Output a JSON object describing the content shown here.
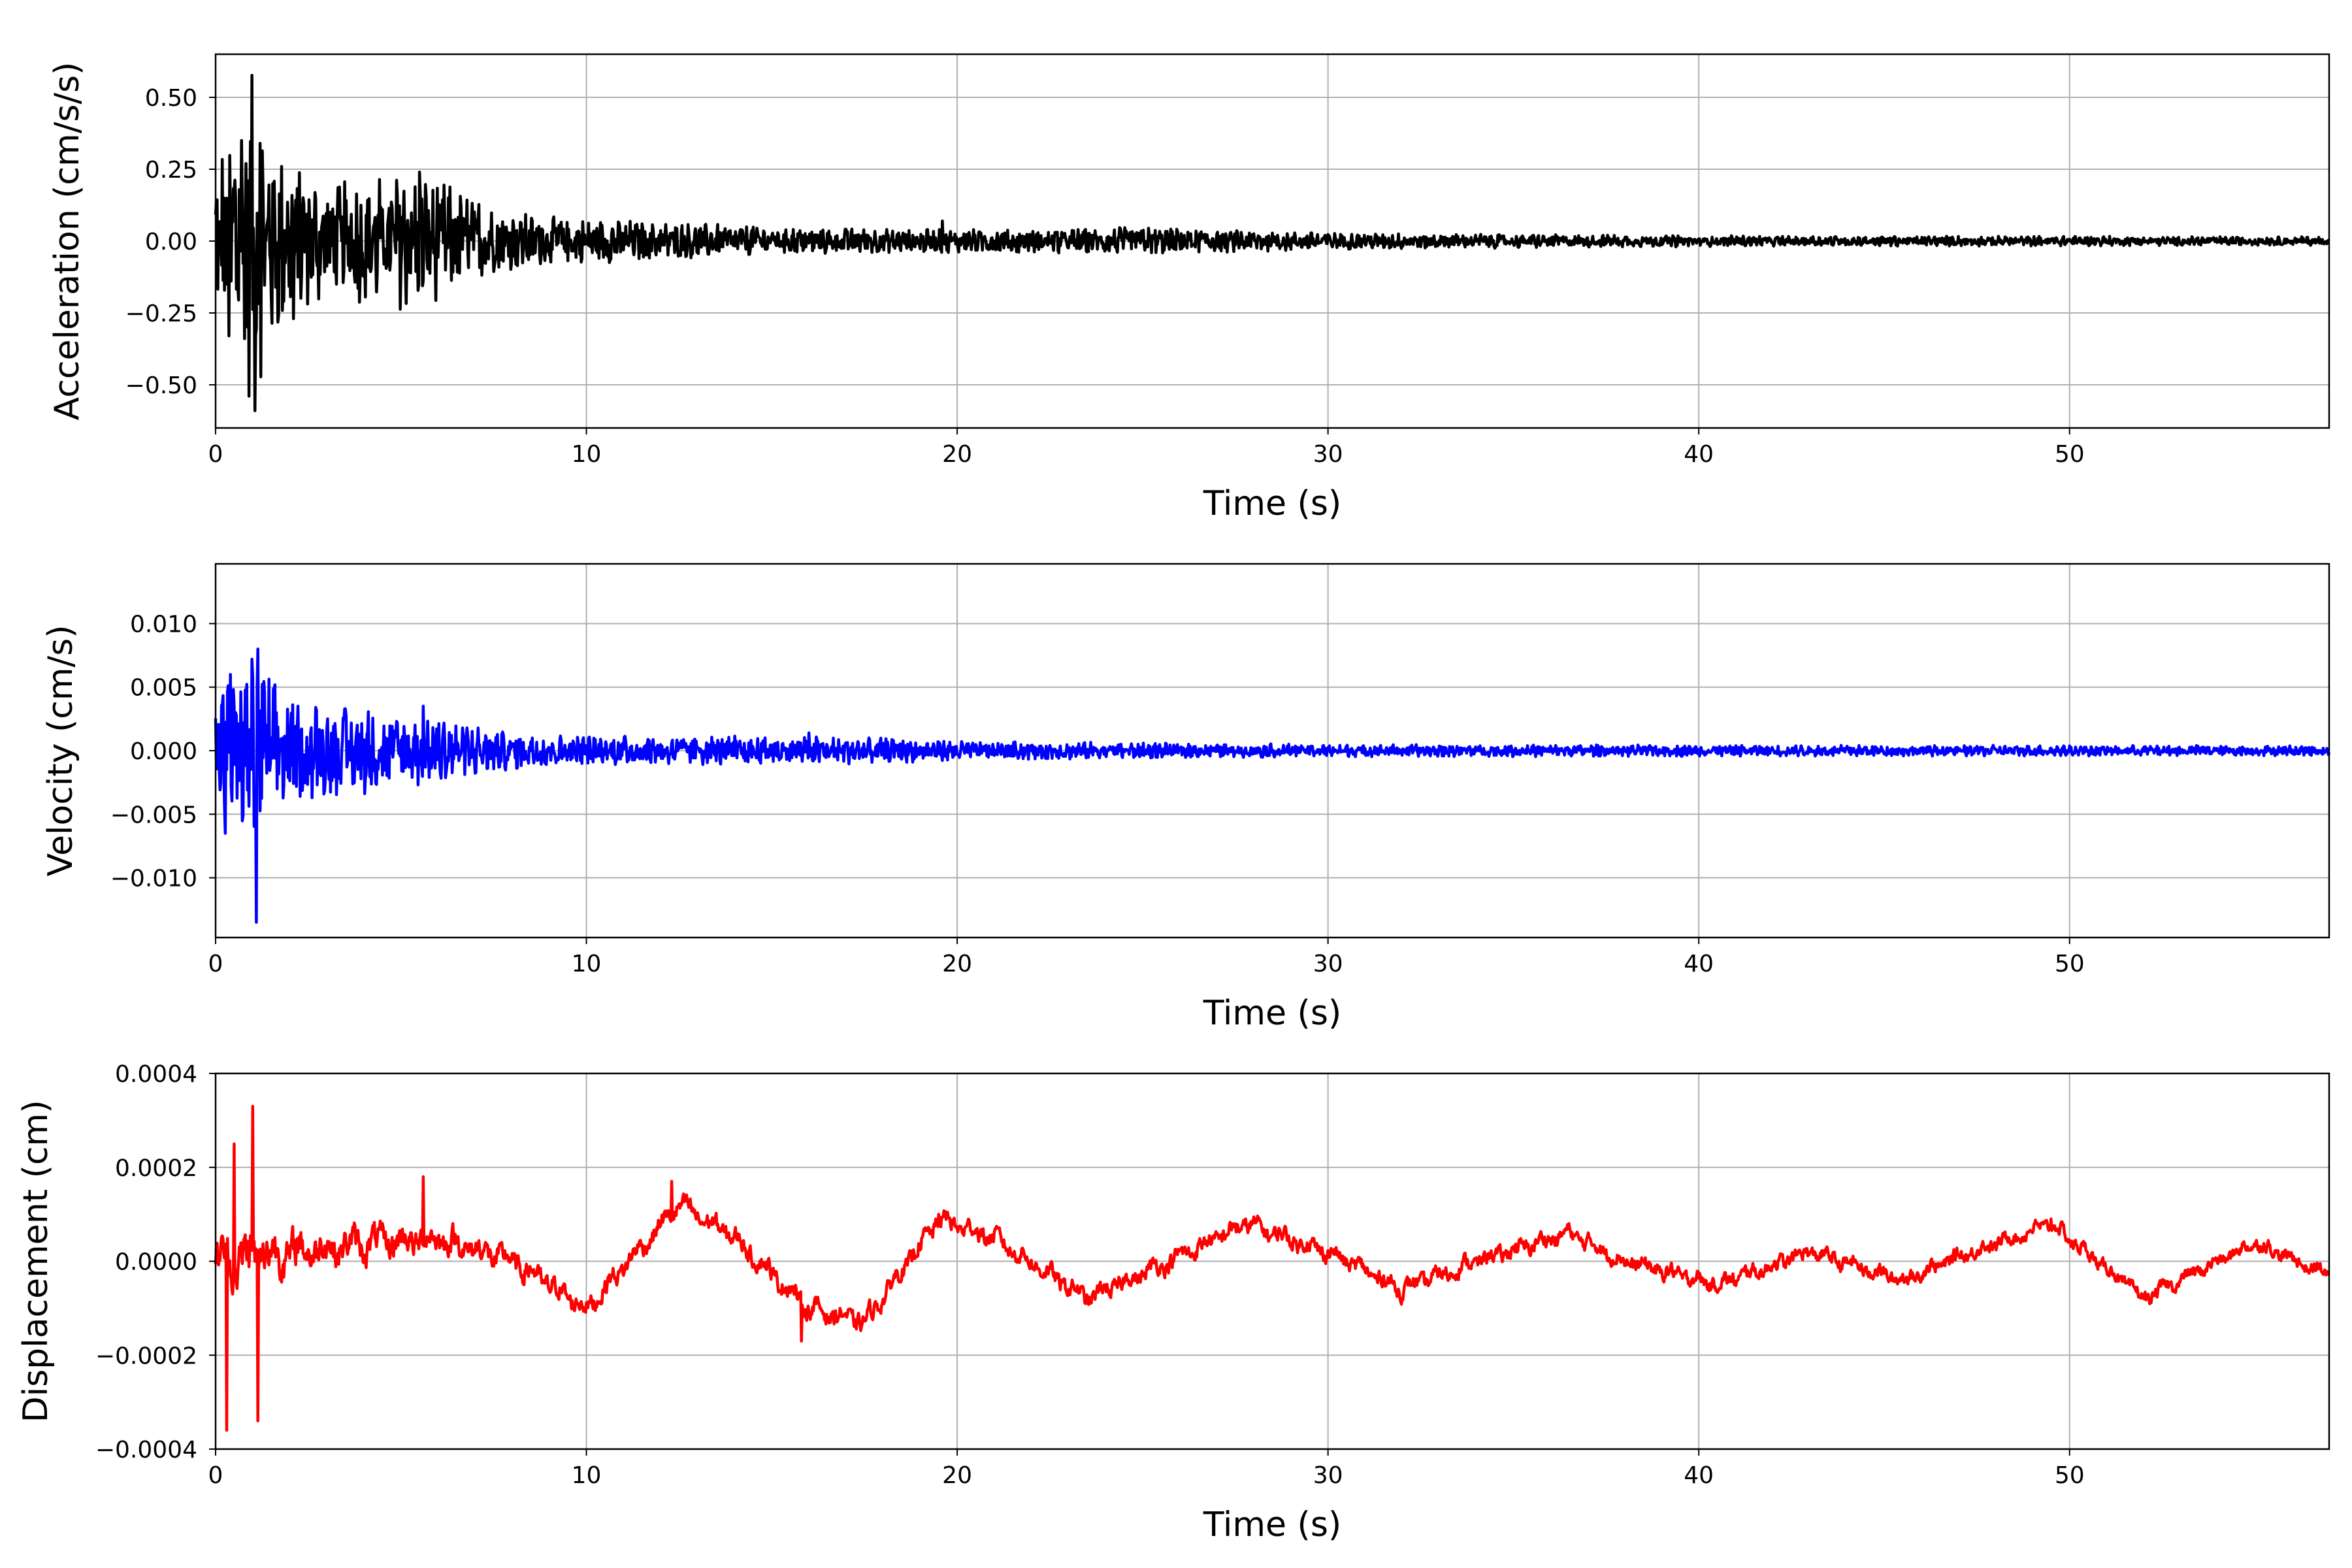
{
  "chart_data": [
    {
      "type": "line",
      "xlabel": "Time (s)",
      "ylabel": "Acceleration (cm/s/s)",
      "xlim": [
        0,
        57
      ],
      "ylim": [
        -0.65,
        0.65
      ],
      "xticks": [
        0,
        10,
        20,
        30,
        40,
        50
      ],
      "yticks": [
        -0.5,
        -0.25,
        0.0,
        0.25,
        0.5
      ],
      "ytick_labels": [
        "−0.50",
        "−0.25",
        "0.00",
        "0.25",
        "0.50"
      ],
      "grid": true,
      "series": [
        {
          "color": "#000000",
          "envelope": [
            [
              0,
              0.3
            ],
            [
              1,
              0.6
            ],
            [
              1.5,
              0.35
            ],
            [
              3,
              0.2
            ],
            [
              5.5,
              0.25
            ],
            [
              8,
              0.1
            ],
            [
              10,
              0.08
            ],
            [
              15,
              0.05
            ],
            [
              20,
              0.04
            ],
            [
              25,
              0.05
            ],
            [
              30,
              0.03
            ],
            [
              40,
              0.02
            ],
            [
              57,
              0.015
            ]
          ],
          "peaks": [
            [
              0.7,
              0.35
            ],
            [
              1.05,
              -0.59
            ],
            [
              1.2,
              0.34
            ],
            [
              0.35,
              -0.33
            ],
            [
              5.5,
              0.24
            ],
            [
              2.1,
              -0.27
            ],
            [
              19.6,
              0.07
            ]
          ]
        }
      ]
    },
    {
      "type": "line",
      "xlabel": "Time (s)",
      "ylabel": "Velocity (cm/s)",
      "xlim": [
        0,
        57
      ],
      "ylim": [
        -0.0147,
        0.0147
      ],
      "xticks": [
        0,
        10,
        20,
        30,
        40,
        50
      ],
      "yticks": [
        -0.01,
        -0.005,
        0.0,
        0.005,
        0.01
      ],
      "ytick_labels": [
        "−0.010",
        "−0.005",
        "0.000",
        "0.005",
        "0.010"
      ],
      "grid": true,
      "series": [
        {
          "color": "#0000ff",
          "envelope": [
            [
              0,
              0.005
            ],
            [
              1,
              0.008
            ],
            [
              2,
              0.004
            ],
            [
              5.5,
              0.003
            ],
            [
              8,
              0.0015
            ],
            [
              10,
              0.0012
            ],
            [
              16,
              0.0012
            ],
            [
              20,
              0.0008
            ],
            [
              30,
              0.0005
            ],
            [
              57,
              0.0004
            ]
          ],
          "peaks": [
            [
              0.4,
              0.006
            ],
            [
              1.15,
              0.008
            ],
            [
              1.1,
              -0.0135
            ],
            [
              0.25,
              -0.0065
            ],
            [
              2.6,
              -0.0037
            ],
            [
              5.6,
              0.0035
            ],
            [
              16,
              0.0014
            ]
          ]
        }
      ]
    },
    {
      "type": "line",
      "xlabel": "Time (s)",
      "ylabel": "Displacement (cm)",
      "xlim": [
        0,
        57
      ],
      "ylim": [
        -0.0004,
        0.0004
      ],
      "xticks": [
        0,
        10,
        20,
        30,
        40,
        50
      ],
      "yticks": [
        -0.0004,
        -0.0002,
        0.0,
        0.0002,
        0.0004
      ],
      "ytick_labels": [
        "−0.0004",
        "−0.0002",
        "0.0000",
        "0.0002",
        "0.0004"
      ],
      "grid": true,
      "series": [
        {
          "color": "#ff0000",
          "envelope": [
            [
              0,
              6e-05
            ],
            [
              1,
              8e-05
            ],
            [
              3,
              5e-05
            ],
            [
              10,
              3e-05
            ],
            [
              57,
              2e-05
            ]
          ],
          "peaks": [
            [
              0.3,
              -0.00036
            ],
            [
              0.5,
              0.00025
            ],
            [
              1.0,
              0.00033
            ],
            [
              1.15,
              -0.00034
            ],
            [
              5.6,
              0.00018
            ],
            [
              12.3,
              0.00017
            ],
            [
              15.8,
              -0.00017
            ],
            [
              19.5,
              0.0001
            ],
            [
              27.5,
              8e-05
            ],
            [
              49.5,
              9e-05
            ],
            [
              52,
              -8e-05
            ]
          ],
          "trend": [
            [
              0,
              0
            ],
            [
              3,
              3e-05
            ],
            [
              6,
              5e-05
            ],
            [
              8,
              0.0
            ],
            [
              10,
              -0.0001
            ],
            [
              12.5,
              0.00012
            ],
            [
              14,
              5e-05
            ],
            [
              16,
              -0.0001
            ],
            [
              17.5,
              -0.00013
            ],
            [
              19.5,
              9e-05
            ],
            [
              21,
              5e-05
            ],
            [
              23.5,
              -8e-05
            ],
            [
              26,
              1e-05
            ],
            [
              27.8,
              8e-05
            ],
            [
              30,
              2e-05
            ],
            [
              32,
              -6e-05
            ],
            [
              34,
              0.0
            ],
            [
              36.5,
              6e-05
            ],
            [
              38,
              0.0
            ],
            [
              40.5,
              -5e-05
            ],
            [
              43,
              2e-05
            ],
            [
              45.5,
              -4e-05
            ],
            [
              47,
              1e-05
            ],
            [
              49.5,
              8e-05
            ],
            [
              52,
              -8e-05
            ],
            [
              54,
              0.0
            ],
            [
              55,
              4e-05
            ],
            [
              57,
              -3e-05
            ]
          ]
        }
      ]
    }
  ]
}
